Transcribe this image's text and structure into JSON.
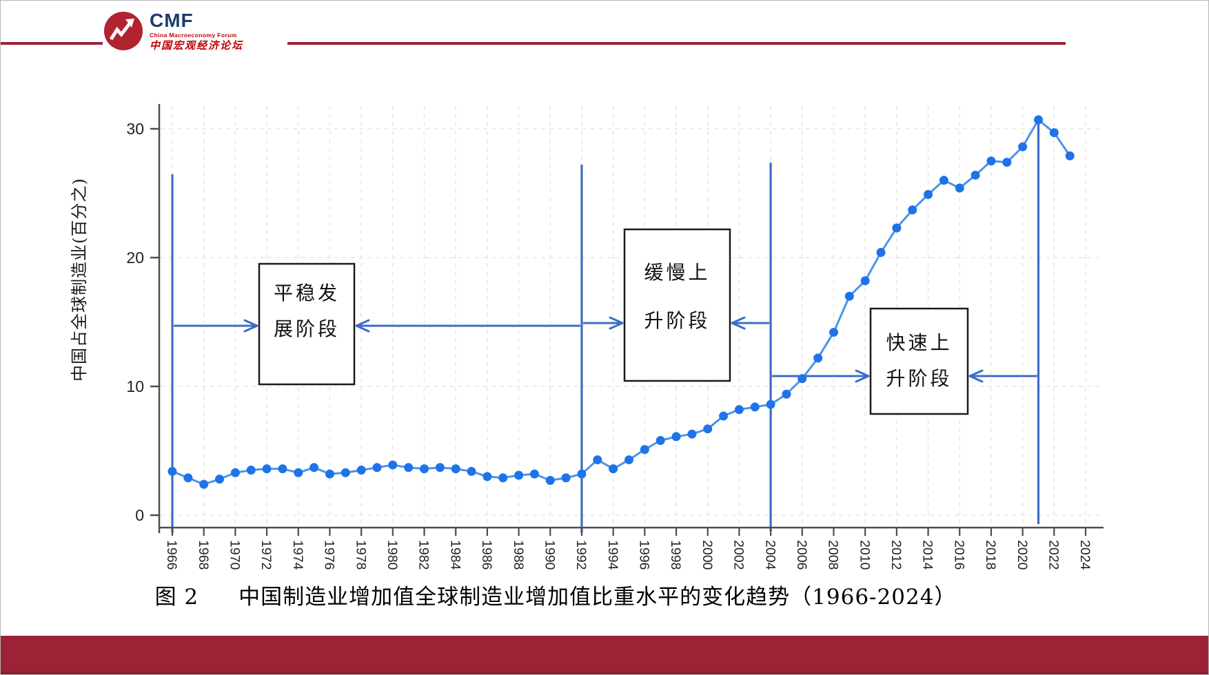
{
  "page": {
    "background": "#ffffff",
    "accent_red": "#9e2235"
  },
  "logo": {
    "acronym": "CMF",
    "subtitle_en": "China Macroeconomy Forum",
    "subtitle_zh": "中国宏观经济论坛",
    "circle_color": "#b02330",
    "acronym_color": "#1e3a6e",
    "subtitle_color": "#c00000"
  },
  "caption": {
    "prefix": "图 2",
    "text": "中国制造业增加值全球制造业增加值比重水平的变化趋势（1966-2024）"
  },
  "chart_data": {
    "type": "line",
    "title": "",
    "xlabel": "",
    "ylabel": "中国占全球制造业(百分之)",
    "ylim": [
      0,
      32
    ],
    "yticks": [
      0,
      10,
      20,
      30
    ],
    "xlim": [
      1966,
      2024
    ],
    "xtick_step": 2,
    "grid": true,
    "legend": "none",
    "line_color": "#4a93ea",
    "marker_color": "#1e73e8",
    "annotation_color": "#3a6cc8",
    "axis_color": "#4c4c4c",
    "grid_color": "#e7e7e7",
    "x": [
      1966,
      1967,
      1968,
      1969,
      1970,
      1971,
      1972,
      1973,
      1974,
      1975,
      1976,
      1977,
      1978,
      1979,
      1980,
      1981,
      1982,
      1983,
      1984,
      1985,
      1986,
      1987,
      1988,
      1989,
      1990,
      1991,
      1992,
      1993,
      1994,
      1995,
      1996,
      1997,
      1998,
      1999,
      2000,
      2001,
      2002,
      2003,
      2004,
      2005,
      2006,
      2007,
      2008,
      2009,
      2010,
      2011,
      2012,
      2013,
      2014,
      2015,
      2016,
      2017,
      2018,
      2019,
      2020,
      2021,
      2022,
      2023
    ],
    "y": [
      3.4,
      2.9,
      2.4,
      2.8,
      3.3,
      3.5,
      3.6,
      3.6,
      3.3,
      3.7,
      3.2,
      3.3,
      3.5,
      3.7,
      3.9,
      3.7,
      3.6,
      3.7,
      3.6,
      3.4,
      3.0,
      2.9,
      3.1,
      3.2,
      2.7,
      2.9,
      3.2,
      4.3,
      3.6,
      4.3,
      5.1,
      5.8,
      6.1,
      6.3,
      6.7,
      7.7,
      8.2,
      8.4,
      8.6,
      9.4,
      10.6,
      12.2,
      14.2,
      17.0,
      18.2,
      20.4,
      22.3,
      23.7,
      24.9,
      26.0,
      25.4,
      26.4,
      27.5,
      27.4,
      28.6,
      30.7,
      29.7,
      27.9
    ],
    "stage_boundary_years": [
      1966,
      1992,
      2004,
      2021
    ],
    "stages": [
      {
        "label_line1": "平稳发",
        "label_line2": "展阶段",
        "from": 1966,
        "to": 1992
      },
      {
        "label_line1": "缓慢上",
        "label_line2": "升阶段",
        "from": 1992,
        "to": 2004
      },
      {
        "label_line1": "快速上",
        "label_line2": "升阶段",
        "from": 2004,
        "to": 2021
      }
    ]
  }
}
